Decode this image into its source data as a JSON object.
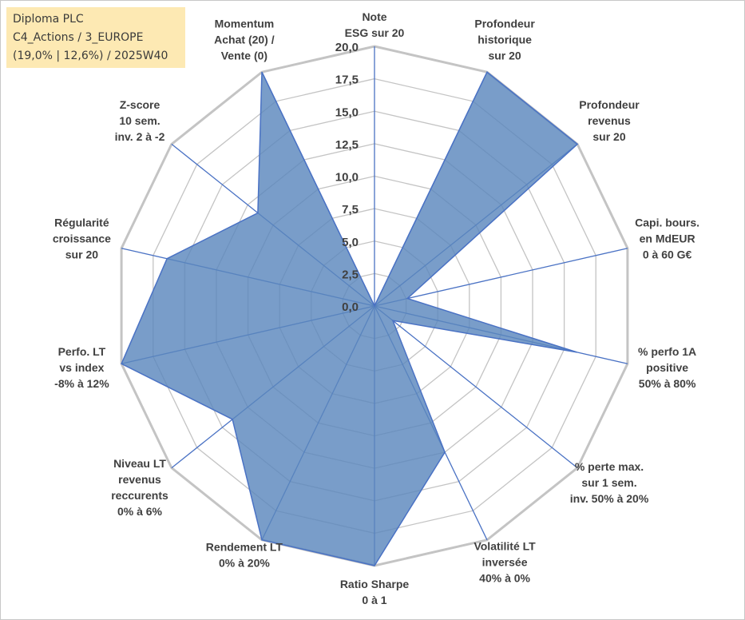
{
  "header": {
    "line1": "Diploma PLC",
    "line2": "C4_Actions / 3_EUROPE",
    "line3": "(19,0% | 12,6%) / 2025W40"
  },
  "colors": {
    "fill": "#5b87bd",
    "stroke": "#4a72c4",
    "grid": "#c4c4c4",
    "spoke": "#4a72c4",
    "label_bg": "#fde9b3"
  },
  "chart_data": {
    "type": "radar",
    "title": "",
    "rmin": 0,
    "rmax": 20,
    "tick_step": 2.5,
    "ticks": [
      "0,0",
      "2,5",
      "5,0",
      "7,5",
      "10,0",
      "12,5",
      "15,0",
      "17,5",
      "20,0"
    ],
    "axes": [
      {
        "label": [
          "Note",
          "ESG sur 20"
        ],
        "value": 0
      },
      {
        "label": [
          "Profondeur",
          "historique",
          "sur 20"
        ],
        "value": 20
      },
      {
        "label": [
          "Profondeur",
          "revenus",
          "sur 20"
        ],
        "value": 20
      },
      {
        "label": [
          "Capi. bours.",
          "en MdEUR",
          "0 à 60 G€"
        ],
        "value": 2.6
      },
      {
        "label": [
          "% perfo 1A",
          "positive",
          "50% à 80%"
        ],
        "value": 16
      },
      {
        "label": [
          "% perte max.",
          "sur 1 sem.",
          "inv. 50% à 20%"
        ],
        "value": 1.8
      },
      {
        "label": [
          "Volatilité LT",
          "inversée",
          "40% à 0%"
        ],
        "value": 12.5
      },
      {
        "label": [
          "Ratio Sharpe",
          "0 à 1"
        ],
        "value": 20
      },
      {
        "label": [
          "Rendement LT",
          "0% à 20%"
        ],
        "value": 20
      },
      {
        "label": [
          "Niveau LT",
          "revenus",
          "reccurents",
          "0% à 6%"
        ],
        "value": 14
      },
      {
        "label": [
          "Perfo. LT",
          "vs index",
          "-8% à 12%"
        ],
        "value": 20
      },
      {
        "label": [
          "Régularité",
          "croissance",
          "sur 20"
        ],
        "value": 16.4
      },
      {
        "label": [
          "Z-score",
          "10 sem.",
          "inv. 2 à -2"
        ],
        "value": 11.5
      },
      {
        "label": [
          "Momentum",
          "Achat (20) /",
          "Vente (0)"
        ],
        "value": 20
      }
    ]
  }
}
